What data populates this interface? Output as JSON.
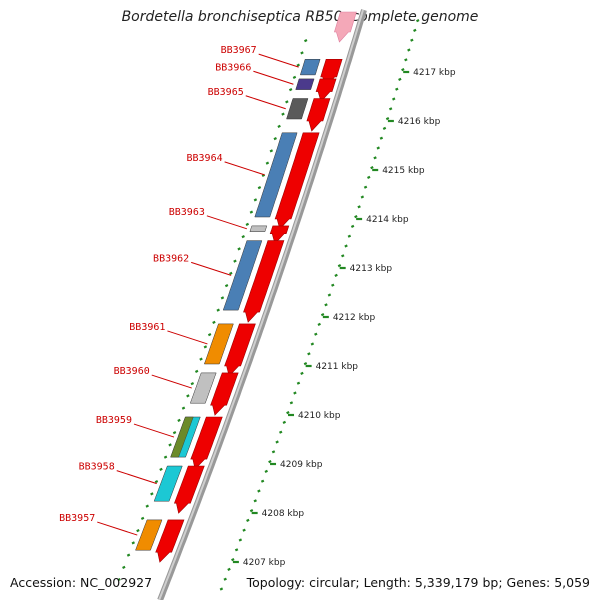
{
  "title": "Bordetella bronchiseptica RB50, complete genome",
  "footer": {
    "accession": "Accession: NC_002927",
    "stats": "Topology: circular; Length: 5,339,179 bp; Genes: 5,059"
  },
  "colors": {
    "cds": "#ee0000",
    "backbone": "#888888",
    "tick": "#228822",
    "label": "#cc0000",
    "steelblue": "#4a7fb5",
    "purple": "#4b3a8c",
    "darkgray": "#5a5a5a",
    "lightgray": "#c0c0c0",
    "orange": "#f08c00",
    "cyan": "#1cc8d4",
    "olive": "#6b8a2a"
  },
  "genes": [
    {
      "label": "BB3967",
      "start": 4217.3,
      "end": 4216.9,
      "color": "steelblue"
    },
    {
      "label": "BB3966",
      "start": 4216.9,
      "end": 4216.6,
      "color": "purple"
    },
    {
      "label": "BB3965",
      "start": 4216.5,
      "end": 4216.0,
      "color": "darkgray"
    },
    {
      "label": "BB3964",
      "start": 4215.8,
      "end": 4214.0,
      "color": "steelblue"
    },
    {
      "label": "BB3963",
      "start": 4213.9,
      "end": 4213.7,
      "color": "lightgray"
    },
    {
      "label": "BB3962",
      "start": 4213.6,
      "end": 4212.1,
      "color": "steelblue"
    },
    {
      "label": "BB3961",
      "start": 4211.9,
      "end": 4211.0,
      "color": "orange"
    },
    {
      "label": "BB3960",
      "start": 4210.9,
      "end": 4210.2,
      "color": "lightgray"
    },
    {
      "label": "BB3959",
      "start": 4210.0,
      "end": 4209.1,
      "color": "cyan"
    },
    {
      "label": "BB3958",
      "start": 4209.0,
      "end": 4208.2,
      "color": "cyan"
    },
    {
      "label": "BB3957",
      "start": 4207.9,
      "end": 4207.2,
      "color": "orange"
    }
  ],
  "ticks": [
    {
      "kbp": 4217,
      "label": "4217 kbp"
    },
    {
      "kbp": 4216,
      "label": "4216 kbp"
    },
    {
      "kbp": 4215,
      "label": "4215 kbp"
    },
    {
      "kbp": 4214,
      "label": "4214 kbp"
    },
    {
      "kbp": 4213,
      "label": "4213 kbp"
    },
    {
      "kbp": 4212,
      "label": "4212 kbp"
    },
    {
      "kbp": 4211,
      "label": "4211 kbp"
    },
    {
      "kbp": 4210,
      "label": "4210 kbp"
    },
    {
      "kbp": 4209,
      "label": "4209 kbp"
    },
    {
      "kbp": 4208,
      "label": "4208 kbp"
    },
    {
      "kbp": 4207,
      "label": "4207 kbp"
    }
  ]
}
